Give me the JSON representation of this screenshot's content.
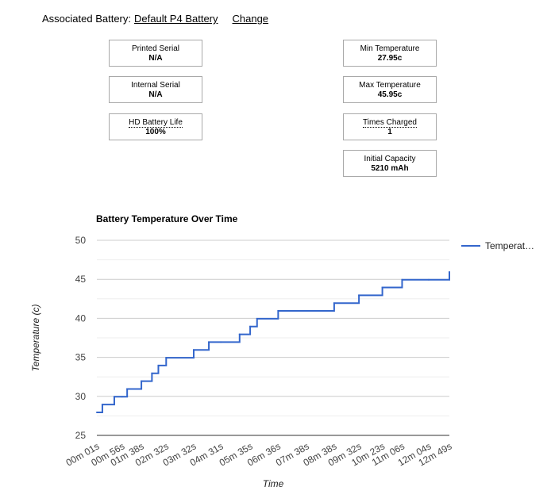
{
  "associated_battery": {
    "label": "Associated Battery:",
    "battery_name": "Default P4 Battery",
    "change_label": "Change"
  },
  "info_left": [
    {
      "label": "Printed Serial",
      "value": "N/A"
    },
    {
      "label": "Internal Serial",
      "value": "N/A"
    },
    {
      "label": "HD Battery Life",
      "value": "100%"
    }
  ],
  "info_right": [
    {
      "label": "Min Temperature",
      "value": "27.95c"
    },
    {
      "label": "Max Temperature",
      "value": "45.95c"
    },
    {
      "label": "Times Charged",
      "value": "1"
    },
    {
      "label": "Initial Capacity",
      "value": "5210 mAh"
    }
  ],
  "chart_data": {
    "type": "line",
    "title": "Battery Temperature Over Time",
    "xlabel": "Time",
    "ylabel": "Temperature (c)",
    "ylim": [
      25,
      50
    ],
    "yticks": [
      25,
      30,
      35,
      40,
      45,
      50
    ],
    "grid": true,
    "legend_position": "right",
    "color": "#3366cc",
    "x_tick_labels": [
      "00m 01s",
      "00m 56s",
      "01m 38s",
      "02m 32s",
      "03m 32s",
      "04m 31s",
      "05m 35s",
      "06m 36s",
      "07m 38s",
      "08m 38s",
      "09m 32s",
      "10m 23s",
      "11m 06s",
      "12m 04s",
      "12m 49s"
    ],
    "series": [
      {
        "name": "Temperat…",
        "x": [
          "00m 01s",
          "00m 13s",
          "00m 39s",
          "00m 56s",
          "01m 07s",
          "01m 38s",
          "02m 01s",
          "02m 15s",
          "02m 32s",
          "03m 32s",
          "04m 05s",
          "04m 31s",
          "05m 12s",
          "05m 35s",
          "05m 50s",
          "06m 36s",
          "07m 38s",
          "08m 38s",
          "09m 32s",
          "10m 23s",
          "11m 06s",
          "12m 04s",
          "12m 49s"
        ],
        "values": [
          27.95,
          28.95,
          29.95,
          29.95,
          30.95,
          31.95,
          32.95,
          33.95,
          34.95,
          35.95,
          36.95,
          36.95,
          37.95,
          38.95,
          39.95,
          40.95,
          40.95,
          41.95,
          42.95,
          43.95,
          44.95,
          44.95,
          45.95
        ]
      }
    ]
  }
}
